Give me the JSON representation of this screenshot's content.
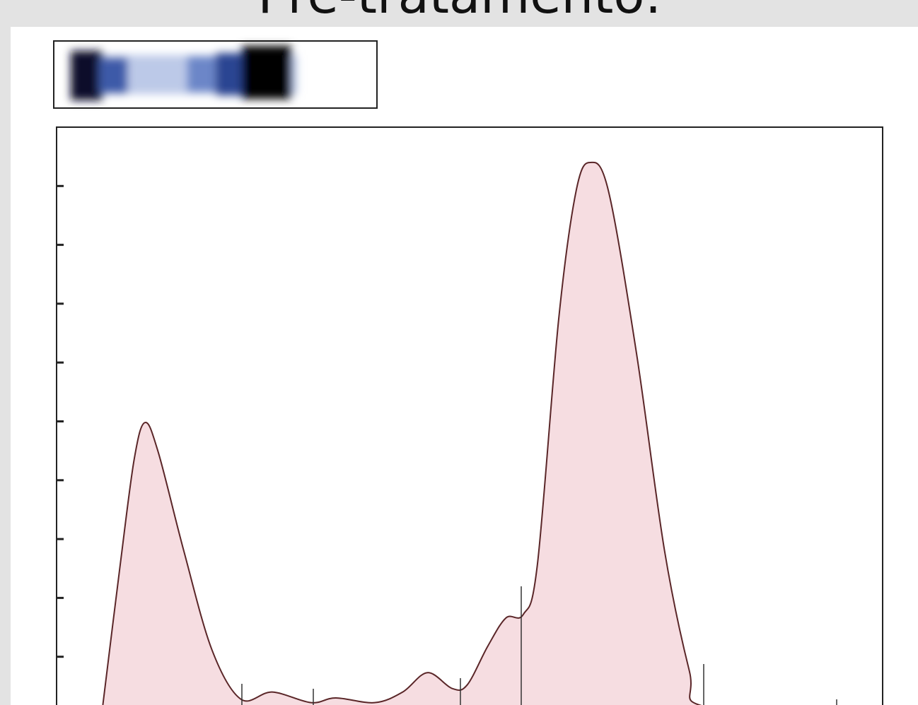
{
  "chart_data": {
    "type": "area",
    "title": "Pré-tratamento:",
    "x": [
      5.6,
      7.7,
      9.4,
      10.7,
      12.3,
      15.4,
      18.8,
      22.3,
      26.1,
      30.8,
      33.8,
      38.5,
      41.9,
      44.9,
      47.9,
      49.7,
      52.2,
      54.4,
      56.5,
      58.2,
      60.8,
      62.9,
      64.6,
      66.8,
      70.2,
      73.6,
      76.6,
      78.3,
      94.2
    ],
    "series": [
      {
        "color": "#f6dde1",
        "values": [
          0.18,
          2.56,
          4.36,
          4.98,
          4.48,
          2.8,
          1.12,
          0.28,
          0.4,
          0.22,
          0.3,
          0.22,
          0.4,
          0.73,
          0.46,
          0.52,
          1.18,
          1.66,
          1.72,
          2.56,
          6.76,
          8.92,
          9.4,
          8.92,
          6.16,
          2.8,
          0.76,
          0.16,
          0.1
        ]
      }
    ],
    "xlim": [
      0,
      100
    ],
    "ylim": [
      0,
      10
    ],
    "yticks": [
      1,
      2,
      3,
      4,
      5,
      6,
      7,
      8,
      9
    ]
  }
}
